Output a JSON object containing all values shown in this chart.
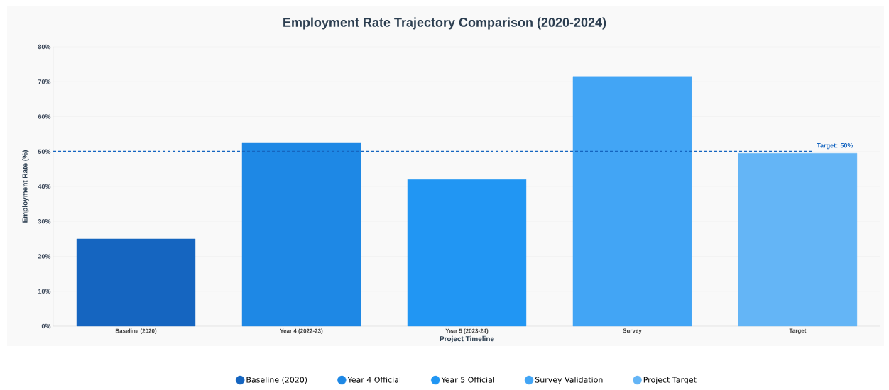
{
  "chart_data": {
    "type": "bar",
    "title": "Employment Rate Trajectory Comparison (2020-2024)",
    "xlabel": "Project Timeline",
    "ylabel": "Employment Rate (%)",
    "categories": [
      "Baseline (2020)",
      "Year 4 (2022-23)",
      "Year 5 (2023-24)",
      "Survey",
      "Target"
    ],
    "series": [
      {
        "name": "Baseline (2020)",
        "color": "#1565c0",
        "values": [
          25,
          null,
          null,
          null,
          null
        ]
      },
      {
        "name": "Year 4 Official",
        "color": "#1e88e5",
        "values": [
          null,
          52.6,
          null,
          null,
          null
        ]
      },
      {
        "name": "Year 5 Official",
        "color": "#2196f3",
        "values": [
          null,
          null,
          42,
          null,
          null
        ]
      },
      {
        "name": "Survey Validation",
        "color": "#42a5f5",
        "values": [
          null,
          null,
          null,
          71.5,
          null
        ]
      },
      {
        "name": "Project Target",
        "color": "#64b5f6",
        "values": [
          null,
          null,
          null,
          null,
          49.5
        ]
      }
    ],
    "ylim": [
      0,
      80
    ],
    "yticks": [
      {
        "value": 0,
        "label": "0%"
      },
      {
        "value": 10,
        "label": "10%"
      },
      {
        "value": 20,
        "label": "20%"
      },
      {
        "value": 30,
        "label": "30%"
      },
      {
        "value": 40,
        "label": "40%"
      },
      {
        "value": 50,
        "label": "50%"
      },
      {
        "value": 60,
        "label": "60%"
      },
      {
        "value": 70,
        "label": "70%"
      },
      {
        "value": 80,
        "label": "80%"
      }
    ],
    "ref_lines": [
      {
        "axis": "y",
        "value": 50,
        "label": "Target: 50%",
        "color": "#1565c0",
        "line_style": "dashed"
      }
    ],
    "grid": "y",
    "legend": "bottom"
  }
}
